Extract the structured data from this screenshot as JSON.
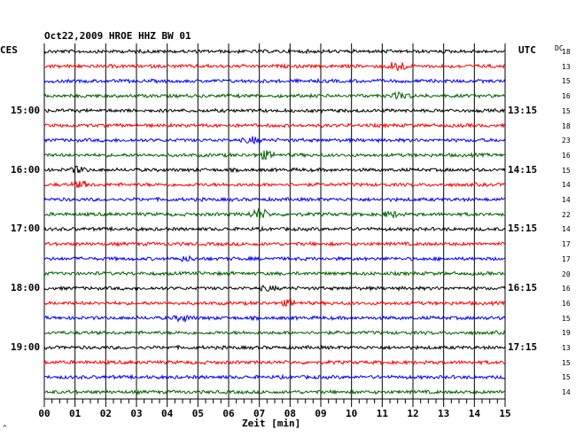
{
  "header": {
    "title": "Oct22,2009   HROE HHZ BW 01",
    "left_zone": "CES",
    "right_zone": "UTC",
    "dc_label": "DC"
  },
  "footer": {
    "xlabel": "Zeit [min]",
    "corner_mark": "^"
  },
  "colors": {
    "trace_cycle": [
      "#000000",
      "#ff0000",
      "#0000ff",
      "#006400"
    ],
    "grid": "#000000",
    "background": "#ffffff"
  },
  "chart_data": {
    "type": "line",
    "title": "Oct22,2009   HROE HHZ BW 01",
    "xlabel": "Zeit [min]",
    "ylabel": "",
    "xlim": [
      0,
      15
    ],
    "x_ticks": [
      "00",
      "01",
      "02",
      "03",
      "04",
      "05",
      "06",
      "07",
      "08",
      "09",
      "10",
      "11",
      "12",
      "13",
      "14",
      "15"
    ],
    "x_minor_tick_step": 0.25,
    "grid": "vertical",
    "trace_count": 24,
    "minutes_per_trace": 15,
    "left_hour_labels": [
      {
        "trace": 4,
        "label": "15:00"
      },
      {
        "trace": 8,
        "label": "16:00"
      },
      {
        "trace": 12,
        "label": "17:00"
      },
      {
        "trace": 16,
        "label": "18:00"
      },
      {
        "trace": 20,
        "label": "19:00"
      }
    ],
    "right_time_labels": [
      {
        "trace": 4,
        "label": "13:15"
      },
      {
        "trace": 8,
        "label": "14:15"
      },
      {
        "trace": 12,
        "label": "15:15"
      },
      {
        "trace": 16,
        "label": "16:15"
      },
      {
        "trace": 20,
        "label": "17:15"
      }
    ],
    "dc_values": [
      "18",
      "13",
      "15",
      "16",
      "15",
      "18",
      "23",
      "16",
      "15",
      "14",
      "14",
      "22",
      "14",
      "17",
      "17",
      "20",
      "16",
      "16",
      "15",
      "19",
      "13",
      "15",
      "15",
      "14"
    ],
    "events": [
      {
        "trace": 1,
        "minute": 11.5,
        "amplitude": 6
      },
      {
        "trace": 3,
        "minute": 11.6,
        "amplitude": 3
      },
      {
        "trace": 6,
        "minute": 6.8,
        "amplitude": 3
      },
      {
        "trace": 7,
        "minute": 7.2,
        "amplitude": 4
      },
      {
        "trace": 8,
        "minute": 1.1,
        "amplitude": 3
      },
      {
        "trace": 9,
        "minute": 1.2,
        "amplitude": 3
      },
      {
        "trace": 11,
        "minute": 7.0,
        "amplitude": 6
      },
      {
        "trace": 11,
        "minute": 11.3,
        "amplitude": 3
      },
      {
        "trace": 14,
        "minute": 4.6,
        "amplitude": 2
      },
      {
        "trace": 16,
        "minute": 7.3,
        "amplitude": 2
      },
      {
        "trace": 17,
        "minute": 8.0,
        "amplitude": 3
      },
      {
        "trace": 18,
        "minute": 4.5,
        "amplitude": 3
      }
    ]
  }
}
